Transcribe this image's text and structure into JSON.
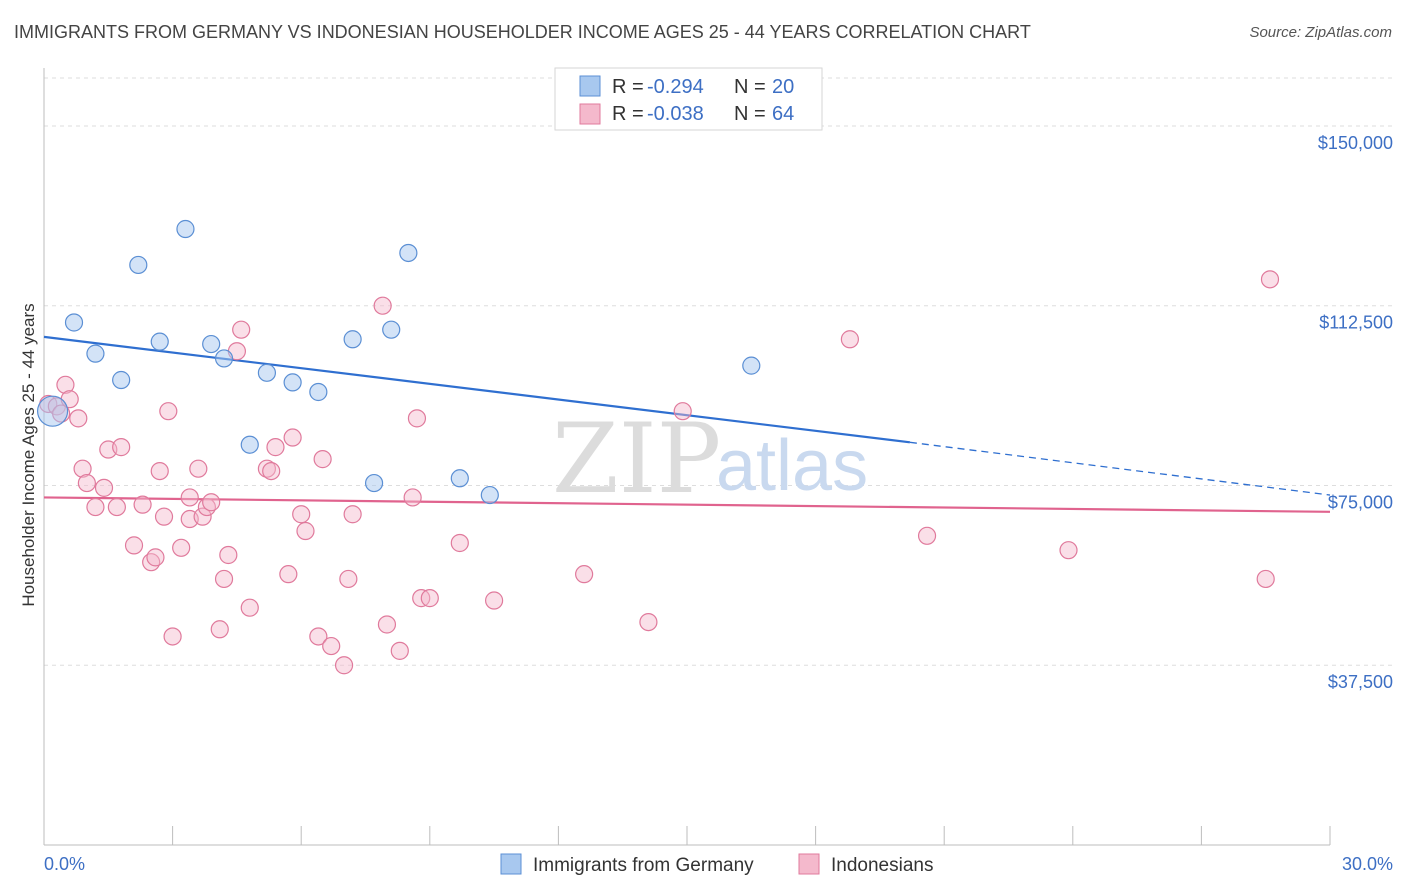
{
  "title": "IMMIGRANTS FROM GERMANY VS INDONESIAN HOUSEHOLDER INCOME AGES 25 - 44 YEARS CORRELATION CHART",
  "source": "Source: ZipAtlas.com",
  "watermark": {
    "zip": "ZIP",
    "atlas": "atlas"
  },
  "colors": {
    "blue_fill": "#a8c8ef",
    "blue_stroke": "#5b8fd4",
    "blue_line": "#2f6fd0",
    "pink_fill": "#f4b9cc",
    "pink_stroke": "#e07a9c",
    "pink_line": "#e0638e",
    "grid": "#dddddd",
    "tick_text": "#3d6fc4"
  },
  "legend": {
    "rows": [
      {
        "series": "blue",
        "r_label": "R =",
        "r_value": "-0.294",
        "n_label": "N =",
        "n_value": "20"
      },
      {
        "series": "pink",
        "r_label": "R =",
        "r_value": "-0.038",
        "n_label": "N =",
        "n_value": "64"
      }
    ]
  },
  "chart_data": {
    "type": "scatter",
    "xlabel": "",
    "ylabel": "Householder Income Ages 25 - 44 years",
    "xlim": [
      0,
      30
    ],
    "ylim": [
      0,
      160000
    ],
    "x_tick_labels": [
      "0.0%",
      "30.0%"
    ],
    "y_ticks": [
      37500,
      75000,
      112500,
      150000
    ],
    "y_tick_labels": [
      "$37,500",
      "$75,000",
      "$112,500",
      "$150,000"
    ],
    "grid": true,
    "legend_position": "top-center",
    "series": [
      {
        "name": "Immigrants from Germany",
        "color": "#a8c8ef",
        "points": [
          [
            0.2,
            90500
          ],
          [
            0.7,
            109000
          ],
          [
            1.2,
            102500
          ],
          [
            1.8,
            97000
          ],
          [
            2.2,
            121000
          ],
          [
            2.7,
            105000
          ],
          [
            3.3,
            128500
          ],
          [
            3.9,
            104500
          ],
          [
            4.2,
            101500
          ],
          [
            4.8,
            83500
          ],
          [
            5.2,
            98500
          ],
          [
            5.8,
            96500
          ],
          [
            6.4,
            94500
          ],
          [
            7.2,
            105500
          ],
          [
            8.1,
            107500
          ],
          [
            7.7,
            75500
          ],
          [
            8.5,
            123500
          ],
          [
            9.7,
            76500
          ],
          [
            10.4,
            73000
          ],
          [
            16.5,
            100000
          ]
        ],
        "trend": {
          "x": [
            0,
            20.2
          ],
          "y": [
            106000,
            84000
          ],
          "dashed_to": [
            30,
            73000
          ]
        }
      },
      {
        "name": "Indonesians",
        "color": "#f4b9cc",
        "points": [
          [
            0.1,
            92000
          ],
          [
            0.3,
            91500
          ],
          [
            0.4,
            90000
          ],
          [
            0.5,
            96000
          ],
          [
            0.6,
            93000
          ],
          [
            0.8,
            89000
          ],
          [
            0.9,
            78500
          ],
          [
            1.0,
            75500
          ],
          [
            1.2,
            70500
          ],
          [
            1.4,
            74500
          ],
          [
            1.5,
            82500
          ],
          [
            1.7,
            70500
          ],
          [
            1.8,
            83000
          ],
          [
            2.1,
            62500
          ],
          [
            2.3,
            71000
          ],
          [
            2.5,
            59000
          ],
          [
            2.6,
            60000
          ],
          [
            2.7,
            78000
          ],
          [
            2.8,
            68500
          ],
          [
            2.9,
            90500
          ],
          [
            3.0,
            43500
          ],
          [
            3.2,
            62000
          ],
          [
            3.4,
            68000
          ],
          [
            3.4,
            72500
          ],
          [
            3.6,
            78500
          ],
          [
            3.7,
            68500
          ],
          [
            3.8,
            70500
          ],
          [
            3.9,
            71500
          ],
          [
            4.1,
            45000
          ],
          [
            4.2,
            55500
          ],
          [
            4.3,
            60500
          ],
          [
            4.5,
            103000
          ],
          [
            4.6,
            107500
          ],
          [
            4.8,
            49500
          ],
          [
            5.2,
            78500
          ],
          [
            5.3,
            78000
          ],
          [
            5.4,
            83000
          ],
          [
            5.7,
            56500
          ],
          [
            5.8,
            85000
          ],
          [
            6.0,
            69000
          ],
          [
            6.1,
            65500
          ],
          [
            6.4,
            43500
          ],
          [
            6.5,
            80500
          ],
          [
            6.7,
            41500
          ],
          [
            7.0,
            37500
          ],
          [
            7.1,
            55500
          ],
          [
            7.2,
            69000
          ],
          [
            7.9,
            112500
          ],
          [
            8.0,
            46000
          ],
          [
            8.3,
            40500
          ],
          [
            8.6,
            72500
          ],
          [
            8.7,
            89000
          ],
          [
            8.8,
            51500
          ],
          [
            9.0,
            51500
          ],
          [
            9.7,
            63000
          ],
          [
            10.5,
            51000
          ],
          [
            12.6,
            56500
          ],
          [
            14.1,
            46500
          ],
          [
            14.9,
            90500
          ],
          [
            18.8,
            105500
          ],
          [
            20.6,
            64500
          ],
          [
            23.9,
            61500
          ],
          [
            28.5,
            55500
          ],
          [
            28.6,
            118000
          ]
        ],
        "trend": {
          "x": [
            0,
            30
          ],
          "y": [
            72500,
            69500
          ]
        }
      }
    ]
  }
}
